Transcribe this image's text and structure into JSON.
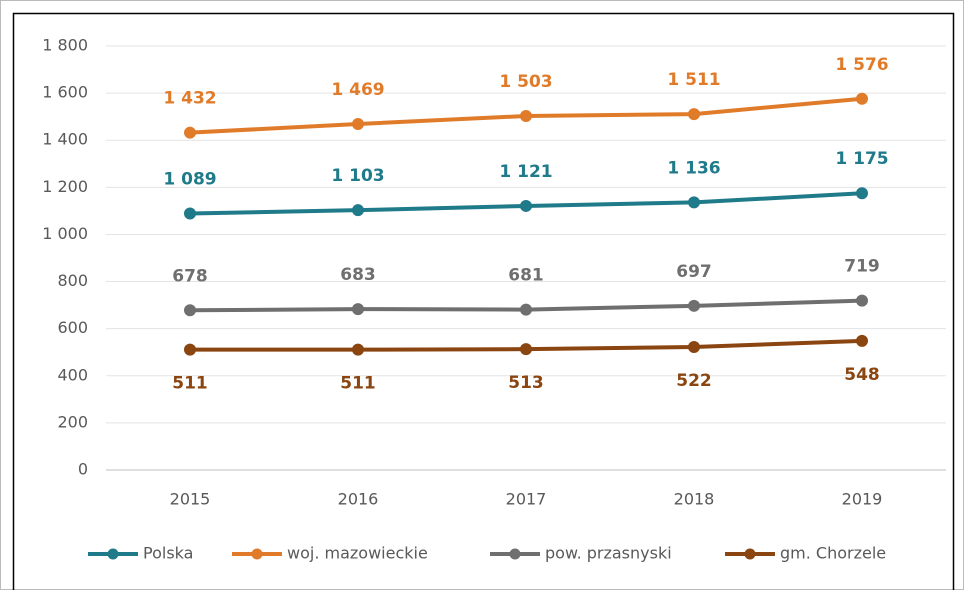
{
  "chart_data": {
    "type": "line",
    "categories": [
      "2015",
      "2016",
      "2017",
      "2018",
      "2019"
    ],
    "series": [
      {
        "name": "Polska",
        "color": "#1f7a8a",
        "values": [
          1089,
          1103,
          1121,
          1136,
          1175
        ],
        "value_labels": [
          "1 089",
          "1 103",
          "1 121",
          "1 136",
          "1 175"
        ]
      },
      {
        "name": "woj. mazowieckie",
        "color": "#e07b2a",
        "values": [
          1432,
          1469,
          1503,
          1511,
          1576
        ],
        "value_labels": [
          "1 432",
          "1 469",
          "1 503",
          "1 511",
          "1 576"
        ]
      },
      {
        "name": "pow. przasnyski",
        "color": "#6f6f6f",
        "values": [
          678,
          683,
          681,
          697,
          719
        ]
      },
      {
        "name": "gm. Chorzele",
        "color": "#8a4510",
        "values": [
          511,
          511,
          513,
          522,
          548
        ]
      }
    ],
    "ylim": [
      0,
      1800
    ],
    "yticks": [
      0,
      200,
      400,
      600,
      800,
      {
        "value": 1000,
        "label": "1 000"
      },
      {
        "value": 1200,
        "label": "1 200"
      },
      {
        "value": 1400,
        "label": "1 400"
      },
      {
        "value": 1600,
        "label": "1 600"
      },
      {
        "value": 1800,
        "label": "1 800"
      }
    ],
    "grid": true
  }
}
